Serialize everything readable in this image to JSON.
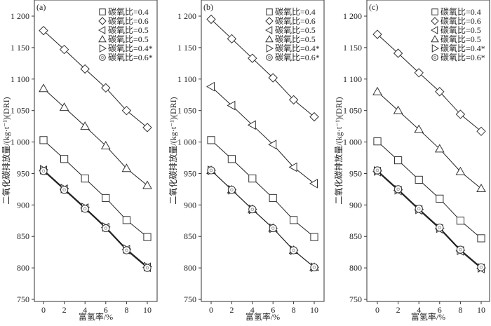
{
  "chart_data": [
    {
      "type": "line",
      "panel_label": "(a)",
      "xlabel": "富氢率/%",
      "ylabel": "二氧化碳排放量/(kg·t⁻¹)(DRI)",
      "x": [
        0,
        2,
        4,
        6,
        8,
        10
      ],
      "xticks": [
        "0",
        "2",
        "4",
        "6",
        "8",
        "10"
      ],
      "ylim": [
        750,
        1220
      ],
      "yticks": [
        "750",
        "800",
        "850",
        "900",
        "950",
        "1 000",
        "1 050",
        "1 100",
        "1 150",
        "1 200"
      ],
      "legend_position": "top-right",
      "series": [
        {
          "name": "碳氧比=0.4",
          "marker": "square",
          "values": [
            1003,
            973,
            942,
            911,
            876,
            849
          ]
        },
        {
          "name": "碳氧比=0.6",
          "marker": "diamond",
          "values": [
            1177,
            1147,
            1116,
            1086,
            1050,
            1023
          ]
        },
        {
          "name": "碳氧比=0.5",
          "marker": "triangle-left",
          "values": [
            955,
            925,
            895,
            864,
            829,
            801
          ]
        },
        {
          "name": "碳氧比=0.5",
          "marker": "triangle-up",
          "values": [
            1085,
            1055,
            1025,
            994,
            958,
            931
          ]
        },
        {
          "name": "碳氧比=0.4*",
          "marker": "triangle-right",
          "values": [
            956,
            926,
            896,
            865,
            830,
            802
          ]
        },
        {
          "name": "碳氧比=0.6*",
          "marker": "circle-dot",
          "values": [
            954,
            924,
            894,
            863,
            828,
            800
          ]
        }
      ]
    },
    {
      "type": "line",
      "panel_label": "(b)",
      "xlabel": "富氢率/%",
      "ylabel": "二氧化碳排放量/(kg·t⁻¹)(DRI)",
      "x": [
        0,
        2,
        4,
        6,
        8,
        10
      ],
      "xticks": [
        "0",
        "2",
        "4",
        "6",
        "8",
        "10"
      ],
      "ylim": [
        750,
        1220
      ],
      "yticks": [
        "750",
        "800",
        "850",
        "900",
        "950",
        "1 000",
        "1 050",
        "1 100",
        "1 150",
        "1 200"
      ],
      "legend_position": "top-right",
      "series": [
        {
          "name": "碳氧比=0.4",
          "marker": "square",
          "values": [
            1003,
            973,
            942,
            911,
            876,
            849
          ]
        },
        {
          "name": "碳氧比=0.6",
          "marker": "diamond",
          "values": [
            1195,
            1164,
            1133,
            1102,
            1067,
            1040
          ]
        },
        {
          "name": "碳氧比=0.5",
          "marker": "triangle-left",
          "values": [
            1088,
            1058,
            1027,
            996,
            960,
            934
          ]
        },
        {
          "name": "碳氧比=0.5",
          "marker": "triangle-up",
          "values": [
            955,
            924,
            893,
            863,
            828,
            801
          ]
        },
        {
          "name": "碳氧比=0.4*",
          "marker": "triangle-right",
          "values": [
            955,
            924,
            893,
            863,
            828,
            801
          ]
        },
        {
          "name": "碳氧比=0.6*",
          "marker": "circle-dot",
          "values": [
            955,
            924,
            893,
            863,
            828,
            801
          ]
        }
      ]
    },
    {
      "type": "line",
      "panel_label": "(c)",
      "xlabel": "富氢率/%",
      "ylabel": "二氧化碳排放量/(kg·t⁻¹)(DRI)",
      "x": [
        0,
        2,
        4,
        6,
        8,
        10
      ],
      "xticks": [
        "0",
        "2",
        "4",
        "6",
        "8",
        "10"
      ],
      "ylim": [
        750,
        1220
      ],
      "yticks": [
        "750",
        "800",
        "850",
        "900",
        "950",
        "1 000",
        "1 050",
        "1 100",
        "1 150",
        "1 200"
      ],
      "legend_position": "top-right",
      "series": [
        {
          "name": "碳氧比=0.4",
          "marker": "square",
          "values": [
            1001,
            971,
            940,
            910,
            875,
            847
          ]
        },
        {
          "name": "碳氧比=0.6",
          "marker": "diamond",
          "values": [
            1171,
            1141,
            1110,
            1080,
            1044,
            1017
          ]
        },
        {
          "name": "碳氧比=0.5",
          "marker": "triangle-left",
          "values": [
            953,
            923,
            892,
            862,
            827,
            799
          ]
        },
        {
          "name": "碳氧比=0.5",
          "marker": "triangle-up",
          "values": [
            1080,
            1050,
            1020,
            989,
            953,
            926
          ]
        },
        {
          "name": "碳氧比=0.4*",
          "marker": "triangle-right",
          "values": [
            954,
            924,
            893,
            863,
            828,
            800
          ]
        },
        {
          "name": "碳氧比=0.6*",
          "marker": "circle-dot",
          "values": [
            955,
            925,
            894,
            864,
            829,
            801
          ]
        }
      ]
    }
  ]
}
